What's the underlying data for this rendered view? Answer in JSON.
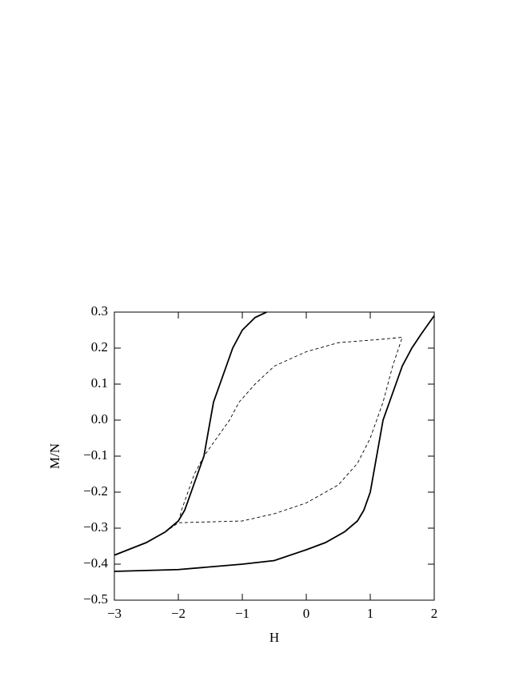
{
  "chart_data": {
    "type": "line",
    "xlabel": "H",
    "ylabel": "M/N",
    "xlim": [
      -3,
      2
    ],
    "ylim": [
      -0.5,
      0.3
    ],
    "xticks": [
      {
        "value": -3,
        "label": "−3"
      },
      {
        "value": -2,
        "label": "−2"
      },
      {
        "value": -1,
        "label": "−1"
      },
      0,
      1,
      2
    ],
    "yticks": [
      {
        "value": -0.5,
        "label": "−0.5"
      },
      {
        "value": -0.4,
        "label": "−0.4"
      },
      {
        "value": -0.3,
        "label": "−0.3"
      },
      {
        "value": -0.2,
        "label": "−0.2"
      },
      {
        "value": -0.1,
        "label": "−0.1"
      },
      {
        "value": 0,
        "label": "0.0"
      },
      0.1,
      0.2,
      0.3
    ],
    "series": [
      {
        "color": "#000000",
        "style": "solid",
        "x": [
          -3,
          -2,
          -1,
          -0.5,
          0,
          0.3,
          0.6,
          0.8,
          0.9,
          1.0,
          1.05,
          1.1,
          1.15,
          1.2,
          1.3,
          1.4,
          1.5,
          1.65,
          1.8,
          2.0
        ],
        "values": [
          -0.42,
          -0.415,
          -0.4,
          -0.39,
          -0.36,
          -0.34,
          -0.31,
          -0.28,
          -0.25,
          -0.2,
          -0.15,
          -0.1,
          -0.05,
          0.0,
          0.05,
          0.1,
          0.15,
          0.2,
          0.24,
          0.29
        ]
      },
      {
        "color": "#000000",
        "style": "solid",
        "x": [
          -3,
          -2.5,
          -2.2,
          -2,
          -1.9,
          -1.8,
          -1.7,
          -1.6,
          -1.55,
          -1.5,
          -1.45,
          -1.35,
          -1.25,
          -1.15,
          -1.0,
          -0.8,
          -0.62
        ],
        "values": [
          -0.375,
          -0.34,
          -0.31,
          -0.28,
          -0.25,
          -0.2,
          -0.15,
          -0.1,
          -0.05,
          0.0,
          0.05,
          0.1,
          0.15,
          0.2,
          0.25,
          0.285,
          0.3
        ]
      },
      {
        "color": "#000000",
        "style": "dashed",
        "x": [
          -3,
          -2.5,
          -2.2,
          -2,
          -1,
          -0.5,
          0,
          0.5,
          0.8,
          1.0,
          1.2,
          1.35,
          1.5,
          1.2,
          0.5,
          0,
          -0.5,
          -0.8,
          -1.05,
          -1.2,
          -1.4,
          -1.6,
          -1.75,
          -1.85,
          -1.95,
          -2
        ],
        "values": [
          -0.375,
          -0.34,
          -0.31,
          -0.285,
          -0.28,
          -0.26,
          -0.23,
          -0.18,
          -0.12,
          -0.05,
          0.05,
          0.15,
          0.23,
          0.225,
          0.215,
          0.19,
          0.15,
          0.1,
          0.05,
          0.0,
          -0.05,
          -0.1,
          -0.15,
          -0.2,
          -0.25,
          -0.285
        ]
      }
    ]
  }
}
